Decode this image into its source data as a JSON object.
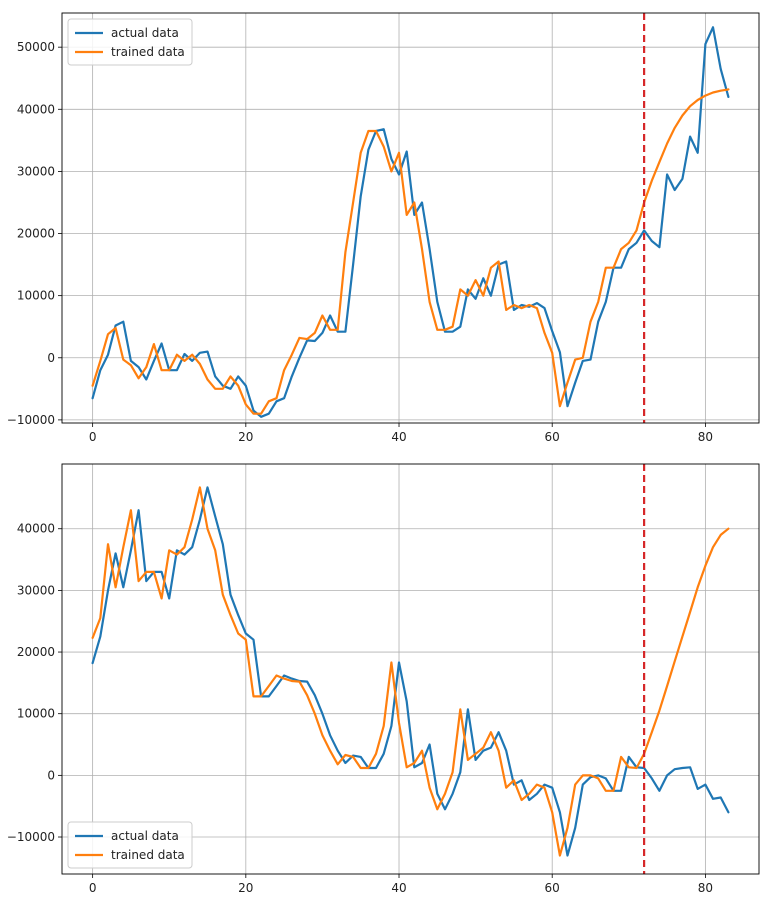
{
  "chart_data": [
    {
      "type": "line",
      "title": "",
      "xlabel": "",
      "ylabel": "",
      "xlim": [
        -4,
        87
      ],
      "ylim": [
        -10500,
        55500
      ],
      "xticks": [
        0,
        20,
        40,
        60,
        80
      ],
      "yticks": [
        -10000,
        0,
        10000,
        20000,
        30000,
        40000,
        50000
      ],
      "xtick_labels": [
        "0",
        "20",
        "40",
        "60",
        "80"
      ],
      "ytick_labels": [
        "−10000",
        "0",
        "10000",
        "20000",
        "30000",
        "40000",
        "50000"
      ],
      "grid": true,
      "legend_placement": "upper-left",
      "vline": {
        "x": 72,
        "color": "#d62728",
        "style": "dashed"
      },
      "series": [
        {
          "name": "actual data",
          "color": "#1f77b4",
          "x": [
            0,
            1,
            2,
            3,
            4,
            5,
            6,
            7,
            8,
            9,
            10,
            11,
            12,
            13,
            14,
            15,
            16,
            17,
            18,
            19,
            20,
            21,
            22,
            23,
            24,
            25,
            26,
            27,
            28,
            29,
            30,
            31,
            32,
            33,
            34,
            35,
            36,
            37,
            38,
            39,
            40,
            41,
            42,
            43,
            44,
            45,
            46,
            47,
            48,
            49,
            50,
            51,
            52,
            53,
            54,
            55,
            56,
            57,
            58,
            59,
            60,
            61,
            62,
            63,
            64,
            65,
            66,
            67,
            68,
            69,
            70,
            71,
            72,
            73,
            74,
            75,
            76,
            77,
            78,
            79,
            80,
            81,
            82,
            83
          ],
          "values": [
            -6500,
            -2000,
            500,
            5200,
            5800,
            -500,
            -1500,
            -3500,
            -500,
            2300,
            -2000,
            -2000,
            600,
            -500,
            800,
            1000,
            -3000,
            -4500,
            -5000,
            -3000,
            -4500,
            -8500,
            -9500,
            -9000,
            -7000,
            -6500,
            -3000,
            0,
            2800,
            2700,
            4000,
            6800,
            4200,
            4200,
            15000,
            26000,
            33500,
            36500,
            36800,
            32000,
            29500,
            33200,
            23000,
            25000,
            17500,
            9000,
            4200,
            4200,
            5000,
            11000,
            9500,
            12800,
            10000,
            15000,
            15500,
            7700,
            8500,
            8200,
            8800,
            8000,
            4300,
            900,
            -7800,
            -4000,
            -500,
            -300,
            5800,
            9000,
            14500,
            14500,
            17500,
            18500,
            20500,
            18800,
            17800,
            29500,
            27000,
            28800,
            35600,
            33000,
            50500,
            53200,
            46500,
            42000
          ]
        },
        {
          "name": "trained data",
          "color": "#ff7f0e",
          "x": [
            0,
            1,
            2,
            3,
            4,
            5,
            6,
            7,
            8,
            9,
            10,
            11,
            12,
            13,
            14,
            15,
            16,
            17,
            18,
            19,
            20,
            21,
            22,
            23,
            24,
            25,
            26,
            27,
            28,
            29,
            30,
            31,
            32,
            33,
            34,
            35,
            36,
            37,
            38,
            39,
            40,
            41,
            42,
            43,
            44,
            45,
            46,
            47,
            48,
            49,
            50,
            51,
            52,
            53,
            54,
            55,
            56,
            57,
            58,
            59,
            60,
            61,
            62,
            63,
            64,
            65,
            66,
            67,
            68,
            69,
            70,
            71,
            72,
            73,
            74,
            75,
            76,
            77,
            78,
            79,
            80,
            81,
            82,
            83
          ],
          "values": [
            -4500,
            -500,
            3800,
            4800,
            -300,
            -1200,
            -3300,
            -1500,
            2200,
            -2000,
            -2000,
            500,
            -500,
            500,
            -1000,
            -3500,
            -5000,
            -5000,
            -3000,
            -4500,
            -7500,
            -9000,
            -9000,
            -7000,
            -6500,
            -2000,
            500,
            3200,
            3000,
            4000,
            6800,
            4500,
            4500,
            17000,
            25000,
            33000,
            36500,
            36500,
            34000,
            30000,
            33000,
            23000,
            25000,
            17500,
            9000,
            4500,
            4500,
            5000,
            11000,
            10000,
            12500,
            10000,
            14500,
            15500,
            7700,
            8500,
            8000,
            8500,
            8000,
            4000,
            800,
            -7800,
            -4000,
            -300,
            0,
            5800,
            9000,
            14500,
            14500,
            17500,
            18500,
            20500,
            25000,
            28500,
            31500,
            34500,
            37000,
            39000,
            40500,
            41500,
            42200,
            42700,
            43000,
            43200
          ]
        }
      ]
    },
    {
      "type": "line",
      "title": "",
      "xlabel": "",
      "ylabel": "",
      "xlim": [
        -4,
        87
      ],
      "ylim": [
        -16000,
        50500
      ],
      "xticks": [
        0,
        20,
        40,
        60,
        80
      ],
      "yticks": [
        -10000,
        0,
        10000,
        20000,
        30000,
        40000
      ],
      "xtick_labels": [
        "0",
        "20",
        "40",
        "60",
        "80"
      ],
      "ytick_labels": [
        "−10000",
        "0",
        "10000",
        "20000",
        "30000",
        "40000"
      ],
      "grid": true,
      "legend_placement": "lower-left",
      "vline": {
        "x": 72,
        "color": "#d62728",
        "style": "dashed"
      },
      "series": [
        {
          "name": "actual data",
          "color": "#1f77b4",
          "x": [
            0,
            1,
            2,
            3,
            4,
            5,
            6,
            7,
            8,
            9,
            10,
            11,
            12,
            13,
            14,
            15,
            16,
            17,
            18,
            19,
            20,
            21,
            22,
            23,
            24,
            25,
            26,
            27,
            28,
            29,
            30,
            31,
            32,
            33,
            34,
            35,
            36,
            37,
            38,
            39,
            40,
            41,
            42,
            43,
            44,
            45,
            46,
            47,
            48,
            49,
            50,
            51,
            52,
            53,
            54,
            55,
            56,
            57,
            58,
            59,
            60,
            61,
            62,
            63,
            64,
            65,
            66,
            67,
            68,
            69,
            70,
            71,
            72,
            73,
            74,
            75,
            76,
            77,
            78,
            79,
            80,
            81,
            82,
            83
          ],
          "values": [
            18200,
            22500,
            30000,
            36000,
            30500,
            36500,
            43000,
            31500,
            33000,
            33000,
            28700,
            36500,
            35800,
            37000,
            41500,
            46700,
            42000,
            37500,
            29300,
            26000,
            23000,
            22000,
            12800,
            12800,
            14500,
            16200,
            15700,
            15300,
            15200,
            13000,
            10000,
            6500,
            4000,
            2000,
            3200,
            3000,
            1200,
            1200,
            3500,
            8000,
            18300,
            12000,
            1300,
            2000,
            5000,
            -3000,
            -5500,
            -3000,
            500,
            10700,
            2500,
            4000,
            4500,
            7000,
            4000,
            -1500,
            -800,
            -4000,
            -3000,
            -1500,
            -2000,
            -6000,
            -13000,
            -8500,
            -1500,
            -300,
            0,
            -500,
            -2500,
            -2500,
            3000,
            1300,
            1200,
            -500,
            -2500,
            0,
            1000,
            1200,
            1300,
            -2200,
            -1500,
            -3800,
            -3600,
            -6000
          ]
        },
        {
          "name": "trained data",
          "color": "#ff7f0e",
          "x": [
            0,
            1,
            2,
            3,
            4,
            5,
            6,
            7,
            8,
            9,
            10,
            11,
            12,
            13,
            14,
            15,
            16,
            17,
            18,
            19,
            20,
            21,
            22,
            23,
            24,
            25,
            26,
            27,
            28,
            29,
            30,
            31,
            32,
            33,
            34,
            35,
            36,
            37,
            38,
            39,
            40,
            41,
            42,
            43,
            44,
            45,
            46,
            47,
            48,
            49,
            50,
            51,
            52,
            53,
            54,
            55,
            56,
            57,
            58,
            59,
            60,
            61,
            62,
            63,
            64,
            65,
            66,
            67,
            68,
            69,
            70,
            71,
            72,
            73,
            74,
            75,
            76,
            77,
            78,
            79,
            80,
            81,
            82,
            83
          ],
          "values": [
            22300,
            25500,
            37500,
            30500,
            37000,
            43000,
            31500,
            33000,
            33000,
            28700,
            36500,
            35800,
            37000,
            41500,
            46700,
            40000,
            36500,
            29300,
            26000,
            23000,
            22000,
            12800,
            12800,
            14500,
            16200,
            15700,
            15300,
            15200,
            13000,
            10000,
            6500,
            4000,
            1800,
            3300,
            3000,
            1200,
            1200,
            3500,
            8000,
            18300,
            8500,
            1300,
            2000,
            4000,
            -2000,
            -5500,
            -3000,
            500,
            10700,
            2500,
            3500,
            4500,
            7000,
            4000,
            -2000,
            -800,
            -4000,
            -3000,
            -1500,
            -2000,
            -6000,
            -13000,
            -8500,
            -1500,
            0,
            0,
            -500,
            -2500,
            -2500,
            3000,
            1300,
            1200,
            3500,
            7000,
            10500,
            14500,
            18500,
            22500,
            26500,
            30500,
            34000,
            37000,
            39000,
            40000
          ]
        }
      ]
    }
  ]
}
